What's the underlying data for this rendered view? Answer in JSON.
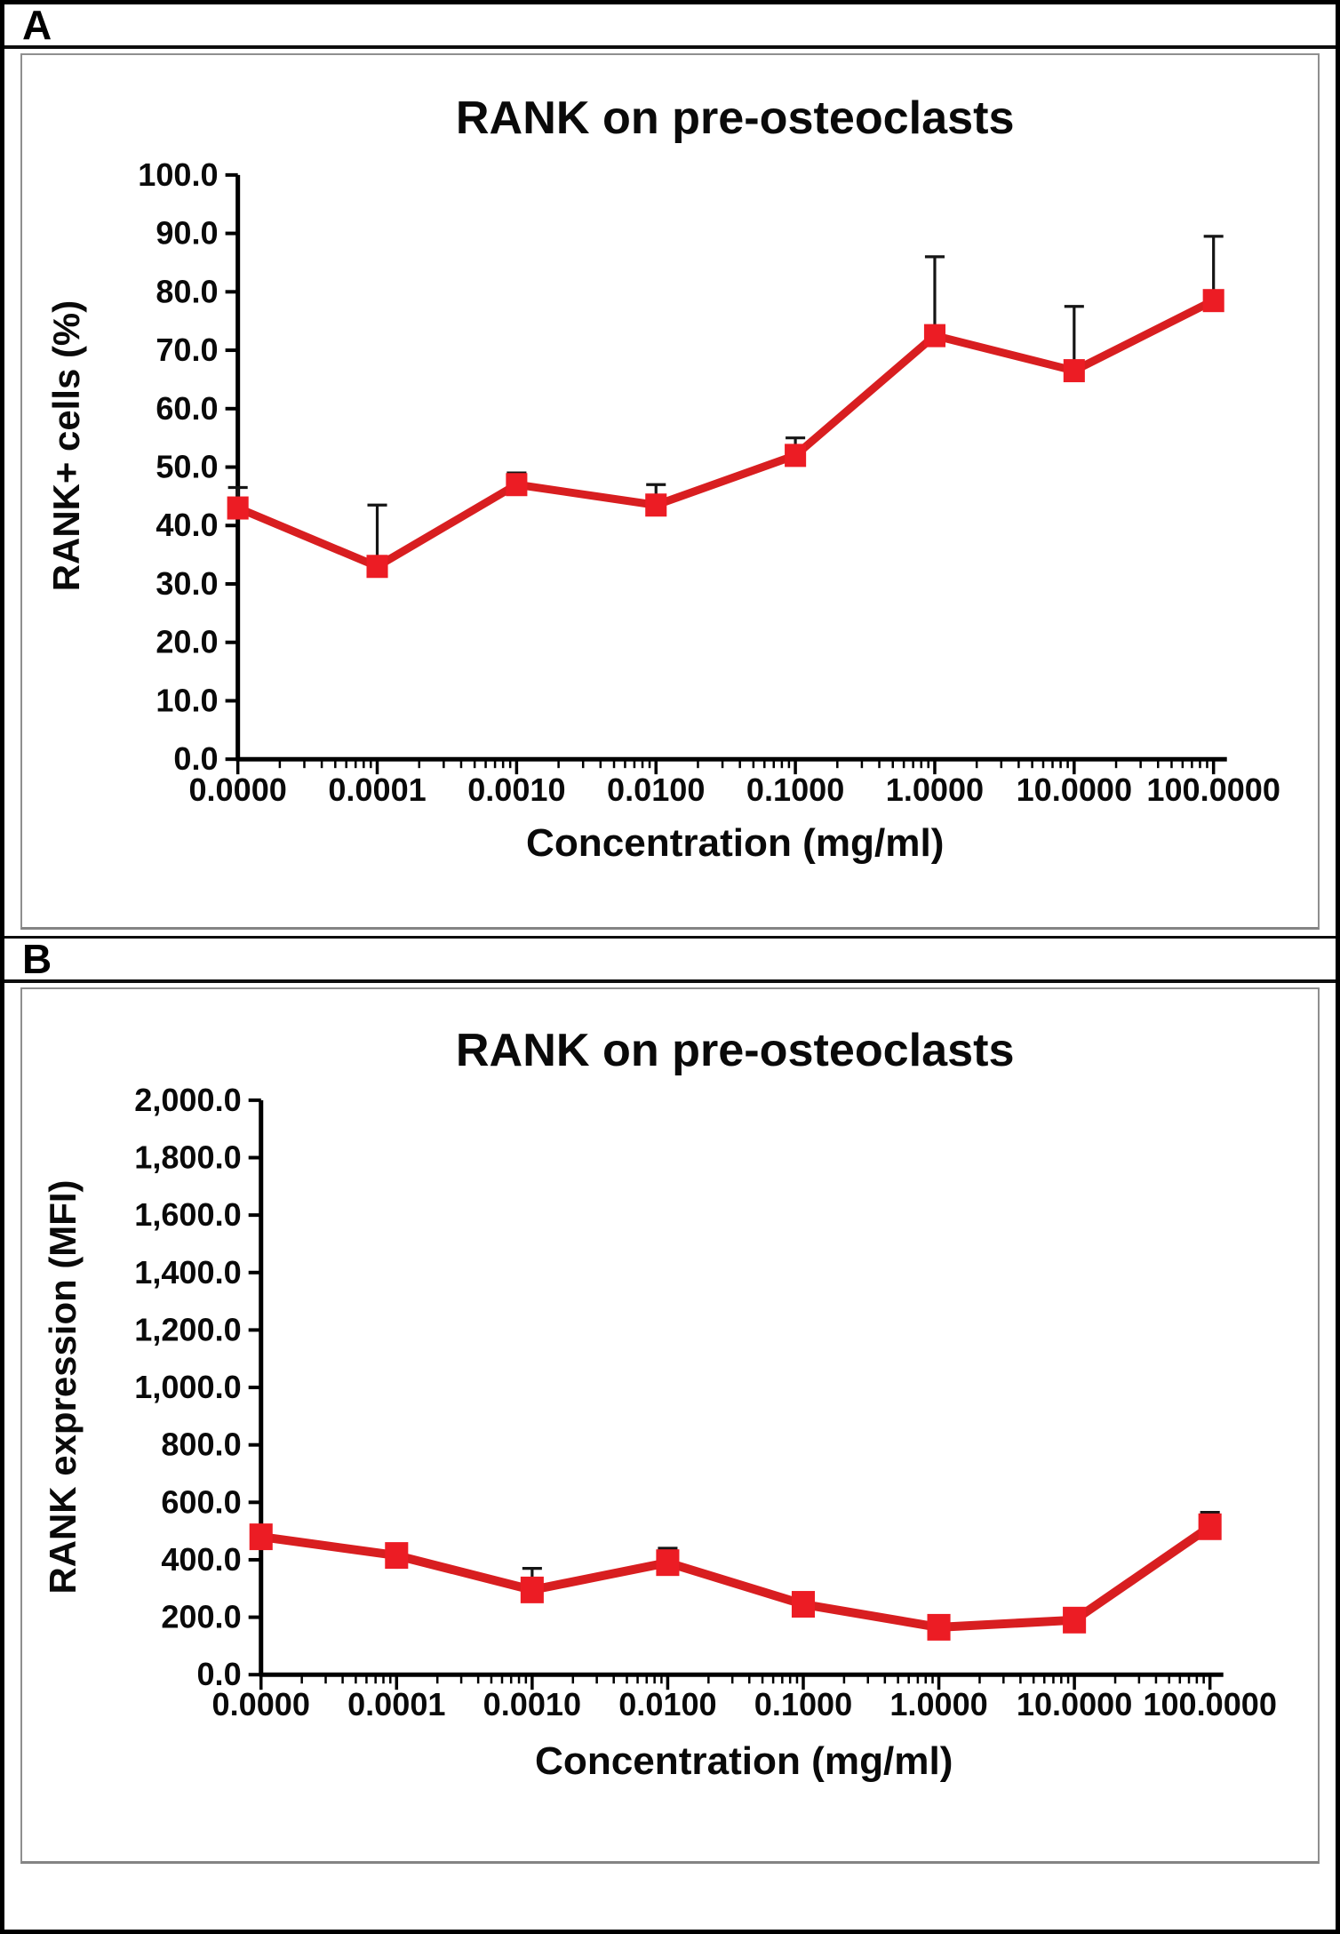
{
  "figure": {
    "panels": [
      {
        "label": "A"
      },
      {
        "label": "B"
      }
    ]
  },
  "chart_data": [
    {
      "type": "line",
      "title": "RANK on pre-osteoclasts",
      "xlabel": "Concentration (mg/ml)",
      "ylabel": "RANK+ cells (%)",
      "categories": [
        "0.0000",
        "0.0001",
        "0.0010",
        "0.0100",
        "0.1000",
        "1.0000",
        "10.0000",
        "100.0000"
      ],
      "values": [
        43.0,
        33.0,
        47.0,
        43.5,
        52.0,
        72.5,
        66.5,
        78.5
      ],
      "errors_up": [
        3.5,
        10.5,
        2.0,
        3.5,
        3.0,
        13.5,
        11.0,
        11.0
      ],
      "ylim": [
        0,
        100
      ],
      "ytick_step": 10,
      "ytick_labels": [
        "0.0",
        "10.0",
        "20.0",
        "30.0",
        "40.0",
        "50.0",
        "60.0",
        "70.0",
        "80.0",
        "90.0",
        "100.0"
      ],
      "x_axis_style": "log-spaced category ticks with logarithmic minor ticks",
      "grid": false,
      "legend": "none",
      "marker": "filled-square",
      "series_color": "#d81e20",
      "marker_color": "#ec1c24",
      "error_bar_color": "#151515"
    },
    {
      "type": "line",
      "title": "RANK on pre-osteoclasts",
      "xlabel": "Concentration (mg/ml)",
      "ylabel": "RANK expression (MFI)",
      "categories": [
        "0.0000",
        "0.0001",
        "0.0010",
        "0.0100",
        "0.1000",
        "1.0000",
        "10.0000",
        "100.0000"
      ],
      "values": [
        480,
        415,
        295,
        390,
        245,
        165,
        190,
        515
      ],
      "errors_up": [
        0,
        0,
        75,
        50,
        0,
        0,
        0,
        50
      ],
      "ylim": [
        0,
        2000
      ],
      "ytick_step": 200,
      "ytick_labels": [
        "0.0",
        "200.0",
        "400.0",
        "600.0",
        "800.0",
        "1,000.0",
        "1,200.0",
        "1,400.0",
        "1,600.0",
        "1,800.0",
        "2,000.0"
      ],
      "x_axis_style": "log-spaced category ticks with logarithmic minor ticks",
      "grid": false,
      "legend": "none",
      "marker": "filled-square",
      "series_color": "#d81e20",
      "marker_color": "#ec1c24",
      "error_bar_color": "#151515"
    }
  ]
}
